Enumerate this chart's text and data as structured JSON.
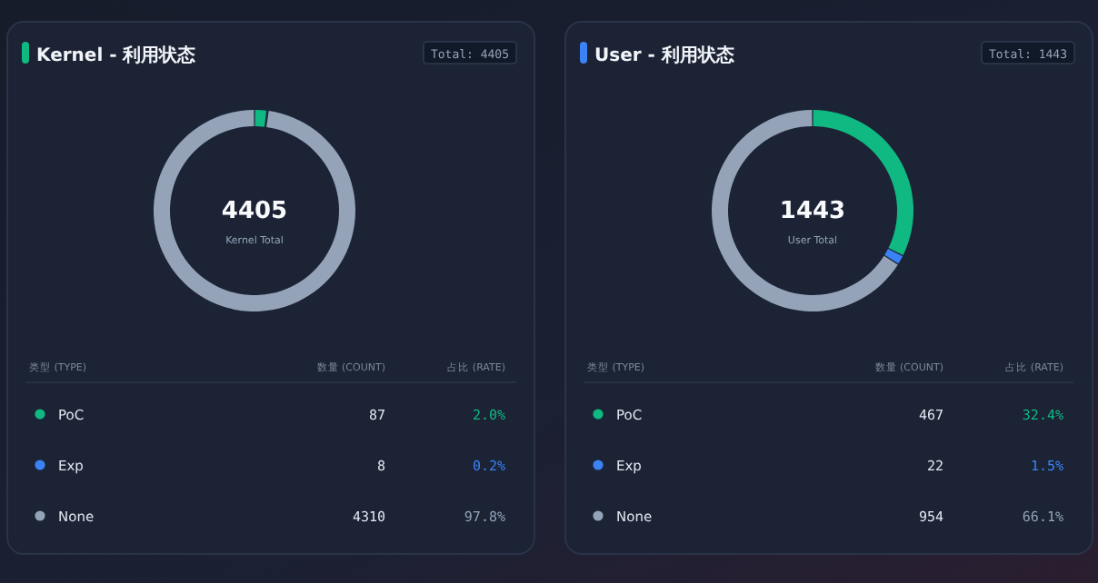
{
  "chart_data": [
    {
      "type": "donut",
      "title": "Kernel - 利用状态",
      "categories": [
        "PoC",
        "Exp",
        "None"
      ],
      "values": [
        87,
        8,
        4310
      ],
      "colors": [
        "#10b981",
        "#3b82f6",
        "#94a3b8"
      ],
      "value_labels": [
        "87",
        "8",
        "4310"
      ],
      "legend": "bottom",
      "annotations": [
        "Total: 4405",
        "4405",
        "Kernel Total",
        "类型 (TYPE)",
        "数量 (COUNT)",
        "占比 (RATE)",
        "2.0%",
        "0.2%",
        "97.8%"
      ]
    },
    {
      "type": "donut",
      "title": "User - 利用状态",
      "categories": [
        "PoC",
        "Exp",
        "None"
      ],
      "values": [
        467,
        22,
        954
      ],
      "colors": [
        "#10b981",
        "#3b82f6",
        "#94a3b8"
      ],
      "value_labels": [
        "467",
        "22",
        "954"
      ],
      "legend": "bottom",
      "annotations": [
        "Total: 1443",
        "1443",
        "User Total",
        "类型 (TYPE)",
        "数量 (COUNT)",
        "占比 (RATE)",
        "32.4%",
        "1.5%",
        "66.1%"
      ]
    }
  ]
}
